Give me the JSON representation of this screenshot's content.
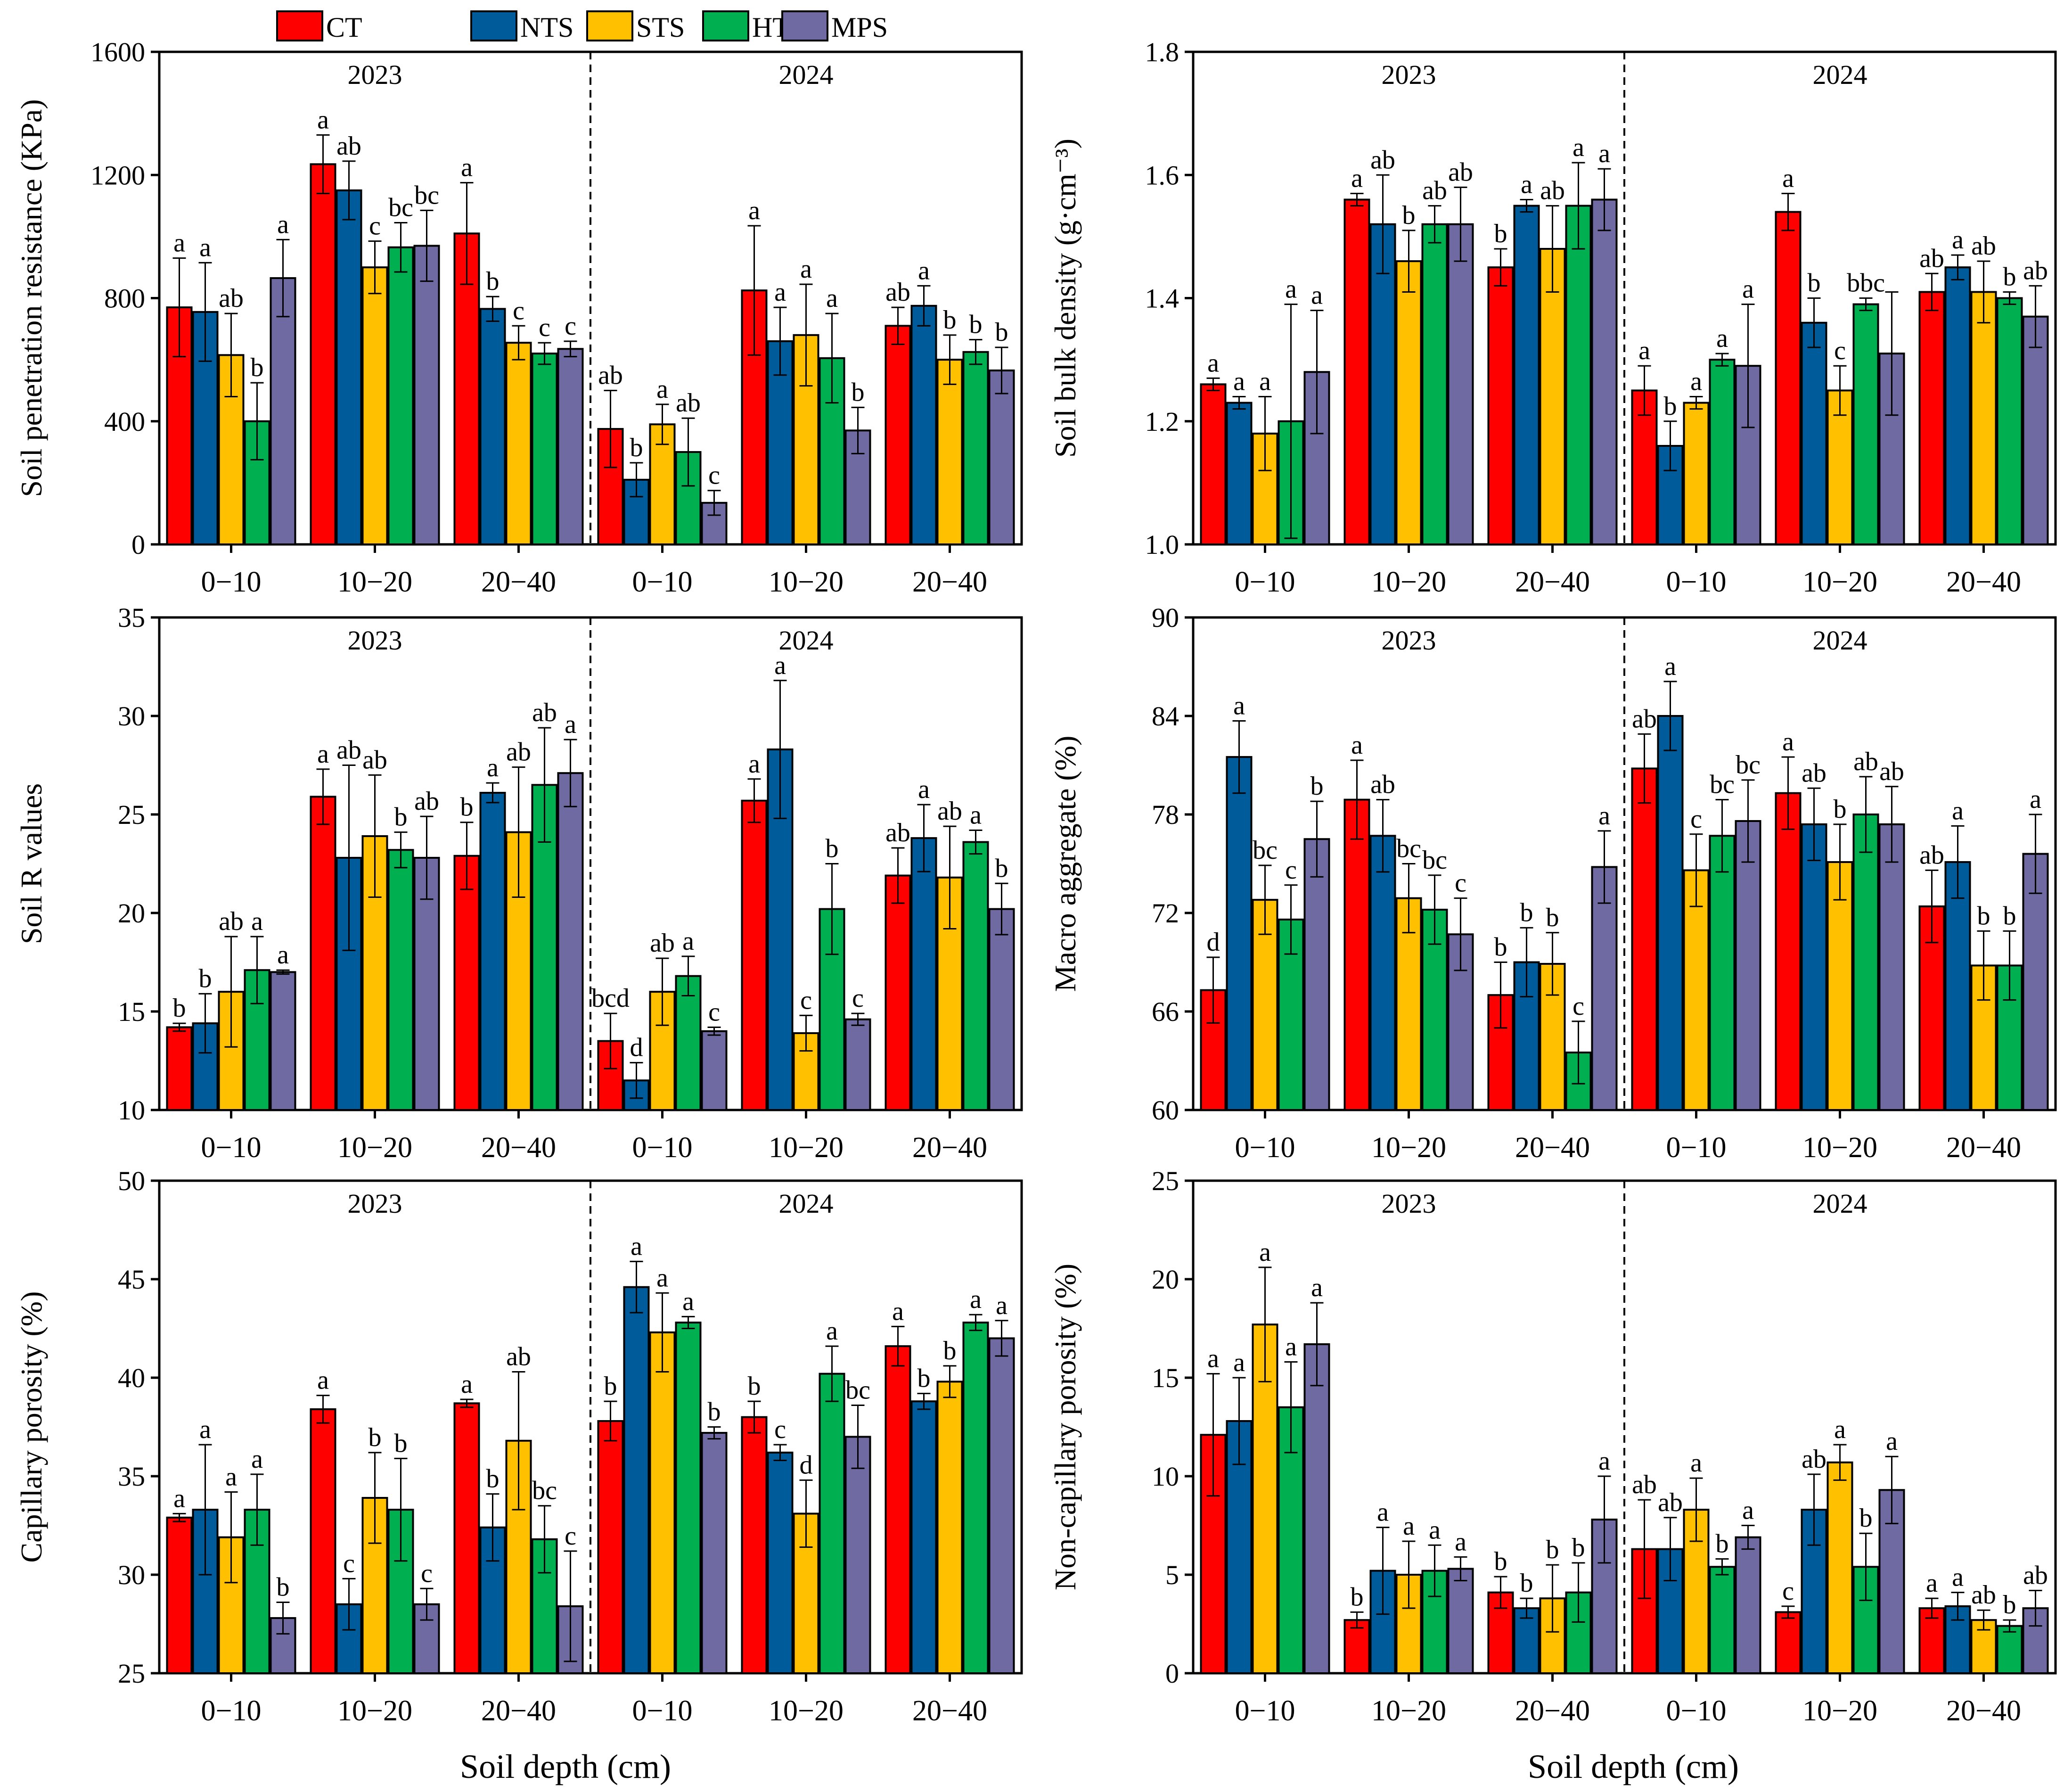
{
  "legend": [
    {
      "name": "CT",
      "color": "#FF0000"
    },
    {
      "name": "NTS",
      "color": "#005B9A"
    },
    {
      "name": "STS",
      "color": "#FFC000"
    },
    {
      "name": "HTS",
      "color": "#00B050"
    },
    {
      "name": "MPS",
      "color": "#6F6AA2"
    }
  ],
  "xlabel": "Soil depth (cm)",
  "chart_data": [
    {
      "type": "bar",
      "title": "",
      "ylabel": "Soil penetration resistance (KPa)",
      "ylim": [
        0,
        1600
      ],
      "yticks": [
        0,
        400,
        800,
        1200,
        1600
      ],
      "years": [
        "2023",
        "2024"
      ],
      "categories": [
        "0−10",
        "10−20",
        "20−40",
        "0−10",
        "10−20",
        "20−40"
      ],
      "series": [
        {
          "name": "CT",
          "values": [
            770,
            1235,
            1010,
            375,
            825,
            710
          ],
          "errors": [
            160,
            95,
            165,
            125,
            210,
            60
          ],
          "letters": [
            "a",
            "a",
            "a",
            "ab",
            "a",
            "ab"
          ]
        },
        {
          "name": "NTS",
          "values": [
            755,
            1150,
            765,
            210,
            660,
            775
          ],
          "errors": [
            160,
            95,
            40,
            55,
            110,
            65
          ],
          "letters": [
            "a",
            "ab",
            "b",
            "b",
            "a",
            "a"
          ]
        },
        {
          "name": "STS",
          "values": [
            615,
            900,
            655,
            390,
            680,
            600
          ],
          "errors": [
            135,
            85,
            55,
            65,
            165,
            80
          ],
          "letters": [
            "ab",
            "c",
            "c",
            "a",
            "a",
            "b"
          ]
        },
        {
          "name": "HTS",
          "values": [
            400,
            965,
            620,
            300,
            605,
            625
          ],
          "errors": [
            125,
            80,
            35,
            110,
            145,
            40
          ],
          "letters": [
            "b",
            "bc",
            "c",
            "ab",
            "a",
            "b"
          ]
        },
        {
          "name": "MPS",
          "values": [
            865,
            970,
            635,
            135,
            370,
            565
          ],
          "errors": [
            125,
            115,
            25,
            40,
            75,
            75
          ],
          "letters": [
            "a",
            "bc",
            "c",
            "c",
            "b",
            "b"
          ]
        }
      ]
    },
    {
      "type": "bar",
      "title": "",
      "ylabel": "Soil bulk density (g·cm⁻³)",
      "ylim": [
        1.0,
        1.8
      ],
      "yticks": [
        1.0,
        1.2,
        1.4,
        1.6,
        1.8
      ],
      "years": [
        "2023",
        "2024"
      ],
      "categories": [
        "0−10",
        "10−20",
        "20−40",
        "0−10",
        "10−20",
        "20−40"
      ],
      "series": [
        {
          "name": "CT",
          "values": [
            1.26,
            1.56,
            1.45,
            1.25,
            1.54,
            1.41
          ],
          "errors": [
            0.01,
            0.01,
            0.03,
            0.04,
            0.03,
            0.03
          ],
          "letters": [
            "a",
            "a",
            "b",
            "a",
            "a",
            "ab"
          ]
        },
        {
          "name": "NTS",
          "values": [
            1.23,
            1.52,
            1.55,
            1.16,
            1.36,
            1.45
          ],
          "errors": [
            0.01,
            0.08,
            0.01,
            0.04,
            0.04,
            0.02
          ],
          "letters": [
            "a",
            "ab",
            "a",
            "b",
            "b",
            "a"
          ]
        },
        {
          "name": "STS",
          "values": [
            1.18,
            1.46,
            1.48,
            1.23,
            1.25,
            1.41
          ],
          "errors": [
            0.06,
            0.05,
            0.07,
            0.01,
            0.04,
            0.05
          ],
          "letters": [
            "a",
            "b",
            "ab",
            "a",
            "c",
            "ab"
          ]
        },
        {
          "name": "HTS",
          "values": [
            1.2,
            1.52,
            1.55,
            1.3,
            1.39,
            1.4
          ],
          "errors": [
            0.19,
            0.03,
            0.07,
            0.01,
            0.01,
            0.01
          ],
          "letters": [
            "a",
            "ab",
            "a",
            "a",
            "bbc",
            "b"
          ]
        },
        {
          "name": "MPS",
          "values": [
            1.28,
            1.52,
            1.56,
            1.29,
            1.31,
            1.37
          ],
          "errors": [
            0.1,
            0.06,
            0.05,
            0.1,
            0.1,
            0.05
          ],
          "letters": [
            "a",
            "ab",
            "a",
            "a",
            "",
            "ab"
          ]
        }
      ]
    },
    {
      "type": "bar",
      "title": "",
      "ylabel": "Soil R values",
      "ylim": [
        10,
        35
      ],
      "yticks": [
        10,
        15,
        20,
        25,
        30,
        35
      ],
      "years": [
        "2023",
        "2024"
      ],
      "categories": [
        "0−10",
        "10−20",
        "20−40",
        "0−10",
        "10−20",
        "20−40"
      ],
      "series": [
        {
          "name": "CT",
          "values": [
            14.2,
            25.9,
            22.9,
            13.5,
            25.7,
            21.9
          ],
          "errors": [
            0.2,
            1.4,
            1.7,
            1.4,
            1.1,
            1.4
          ],
          "letters": [
            "b",
            "a",
            "b",
            "bcd",
            "a",
            "ab"
          ]
        },
        {
          "name": "NTS",
          "values": [
            14.4,
            22.8,
            26.1,
            11.5,
            28.3,
            23.8
          ],
          "errors": [
            1.5,
            4.7,
            0.5,
            0.9,
            3.5,
            1.7
          ],
          "letters": [
            "b",
            "ab",
            "a",
            "d",
            "a",
            "a"
          ]
        },
        {
          "name": "STS",
          "values": [
            16.0,
            23.9,
            24.1,
            16.0,
            13.9,
            21.8
          ],
          "errors": [
            2.8,
            3.1,
            3.3,
            1.7,
            0.9,
            2.6
          ],
          "letters": [
            "ab",
            "ab",
            "ab",
            "ab",
            "c",
            "ab"
          ]
        },
        {
          "name": "HTS",
          "values": [
            17.1,
            23.2,
            26.5,
            16.8,
            20.2,
            23.6
          ],
          "errors": [
            1.7,
            0.9,
            2.9,
            1.0,
            2.3,
            0.6
          ],
          "letters": [
            "a",
            "b",
            "ab",
            "a",
            "b",
            "a"
          ]
        },
        {
          "name": "MPS",
          "values": [
            17.0,
            22.8,
            27.1,
            14.0,
            14.6,
            20.2
          ],
          "errors": [
            0.1,
            2.1,
            1.7,
            0.2,
            0.3,
            1.3
          ],
          "letters": [
            "a",
            "ab",
            "a",
            "c",
            "c",
            "b"
          ]
        }
      ]
    },
    {
      "type": "bar",
      "title": "",
      "ylabel": "Macro aggregate (%)",
      "ylim": [
        60,
        90
      ],
      "yticks": [
        60,
        66,
        72,
        78,
        84,
        90
      ],
      "years": [
        "2023",
        "2024"
      ],
      "categories": [
        "0−10",
        "10−20",
        "20−40",
        "0−10",
        "10−20",
        "20−40"
      ],
      "series": [
        {
          "name": "CT",
          "values": [
            67.3,
            78.9,
            67.0,
            80.8,
            79.3,
            72.4
          ],
          "errors": [
            2.0,
            2.4,
            2.0,
            2.1,
            2.2,
            2.2
          ],
          "letters": [
            "d",
            "a",
            "b",
            "ab",
            "a",
            "ab"
          ]
        },
        {
          "name": "NTS",
          "values": [
            81.5,
            76.7,
            69.0,
            84.0,
            77.4,
            75.1
          ],
          "errors": [
            2.2,
            2.2,
            2.1,
            2.1,
            2.2,
            2.2
          ],
          "letters": [
            "a",
            "ab",
            "b",
            "a",
            "ab",
            "a"
          ]
        },
        {
          "name": "STS",
          "values": [
            72.8,
            72.9,
            68.9,
            74.6,
            75.1,
            68.8
          ],
          "errors": [
            2.1,
            2.1,
            1.9,
            2.2,
            2.3,
            2.1
          ],
          "letters": [
            "bc",
            "bc",
            "b",
            "c",
            "b",
            "b"
          ]
        },
        {
          "name": "HTS",
          "values": [
            71.6,
            72.2,
            63.5,
            76.7,
            78.0,
            68.8
          ],
          "errors": [
            2.1,
            2.1,
            1.9,
            2.2,
            2.3,
            2.1
          ],
          "letters": [
            "c",
            "bc",
            "c",
            "bc",
            "ab",
            "b"
          ]
        },
        {
          "name": "MPS",
          "values": [
            76.5,
            70.7,
            74.8,
            77.6,
            77.4,
            75.6
          ],
          "errors": [
            2.3,
            2.2,
            2.2,
            2.5,
            2.3,
            2.4
          ],
          "letters": [
            "b",
            "c",
            "a",
            "bc",
            "ab",
            "a"
          ]
        }
      ]
    },
    {
      "type": "bar",
      "title": "",
      "ylabel": "Capillary porosity (%)",
      "ylim": [
        25,
        50
      ],
      "yticks": [
        25,
        30,
        35,
        40,
        45,
        50
      ],
      "years": [
        "2023",
        "2024"
      ],
      "categories": [
        "0−10",
        "10−20",
        "20−40",
        "0−10",
        "10−20",
        "20−40"
      ],
      "series": [
        {
          "name": "CT",
          "values": [
            32.9,
            38.4,
            38.7,
            37.8,
            38.0,
            41.6
          ],
          "errors": [
            0.2,
            0.7,
            0.2,
            1.0,
            0.8,
            1.0
          ],
          "letters": [
            "a",
            "a",
            "a",
            "b",
            "b",
            "a"
          ]
        },
        {
          "name": "NTS",
          "values": [
            33.3,
            28.5,
            32.4,
            44.6,
            36.2,
            38.8
          ],
          "errors": [
            3.3,
            1.3,
            1.7,
            1.3,
            0.4,
            0.4
          ],
          "letters": [
            "a",
            "c",
            "b",
            "a",
            "c",
            "b"
          ]
        },
        {
          "name": "STS",
          "values": [
            31.9,
            33.9,
            36.8,
            42.3,
            33.1,
            39.8
          ],
          "errors": [
            2.3,
            2.3,
            3.5,
            2.0,
            1.7,
            0.8
          ],
          "letters": [
            "a",
            "b",
            "ab",
            "a",
            "d",
            "b"
          ]
        },
        {
          "name": "HTS",
          "values": [
            33.3,
            33.3,
            31.8,
            42.8,
            40.2,
            42.8
          ],
          "errors": [
            1.8,
            2.6,
            1.7,
            0.3,
            1.4,
            0.4
          ],
          "letters": [
            "a",
            "b",
            "bc",
            "a",
            "a",
            "a"
          ]
        },
        {
          "name": "MPS",
          "values": [
            27.8,
            28.5,
            28.4,
            37.2,
            37.0,
            42.0
          ],
          "errors": [
            0.8,
            0.8,
            2.8,
            0.3,
            1.6,
            0.9
          ],
          "letters": [
            "b",
            "c",
            "c",
            "b",
            "bc",
            "a"
          ]
        }
      ]
    },
    {
      "type": "bar",
      "title": "",
      "ylabel": "Non-capillary porosity (%)",
      "ylim": [
        0,
        25
      ],
      "yticks": [
        0,
        5,
        10,
        15,
        20,
        25
      ],
      "years": [
        "2023",
        "2024"
      ],
      "categories": [
        "0−10",
        "10−20",
        "20−40",
        "0−10",
        "10−20",
        "20−40"
      ],
      "series": [
        {
          "name": "CT",
          "values": [
            12.1,
            2.7,
            4.1,
            6.3,
            3.1,
            3.3
          ],
          "errors": [
            3.1,
            0.4,
            0.8,
            2.5,
            0.3,
            0.5
          ],
          "letters": [
            "a",
            "b",
            "b",
            "ab",
            "c",
            "a"
          ]
        },
        {
          "name": "NTS",
          "values": [
            12.8,
            5.2,
            3.3,
            6.3,
            8.3,
            3.4
          ],
          "errors": [
            2.2,
            2.2,
            0.5,
            1.6,
            1.8,
            0.7
          ],
          "letters": [
            "a",
            "a",
            "b",
            "ab",
            "ab",
            "a"
          ]
        },
        {
          "name": "STS",
          "values": [
            17.7,
            5.0,
            3.8,
            8.3,
            10.7,
            2.7
          ],
          "errors": [
            2.9,
            1.7,
            1.7,
            1.6,
            0.9,
            0.5
          ],
          "letters": [
            "a",
            "a",
            "b",
            "a",
            "a",
            "ab"
          ]
        },
        {
          "name": "HTS",
          "values": [
            13.5,
            5.2,
            4.1,
            5.4,
            5.4,
            2.4
          ],
          "errors": [
            2.3,
            1.3,
            1.5,
            0.4,
            1.7,
            0.3
          ],
          "letters": [
            "a",
            "a",
            "b",
            "b",
            "b",
            "b"
          ]
        },
        {
          "name": "MPS",
          "values": [
            16.7,
            5.3,
            7.8,
            6.9,
            9.3,
            3.3
          ],
          "errors": [
            2.1,
            0.6,
            2.2,
            0.6,
            1.7,
            0.9
          ],
          "letters": [
            "a",
            "a",
            "a",
            "a",
            "a",
            "ab"
          ]
        }
      ]
    }
  ]
}
